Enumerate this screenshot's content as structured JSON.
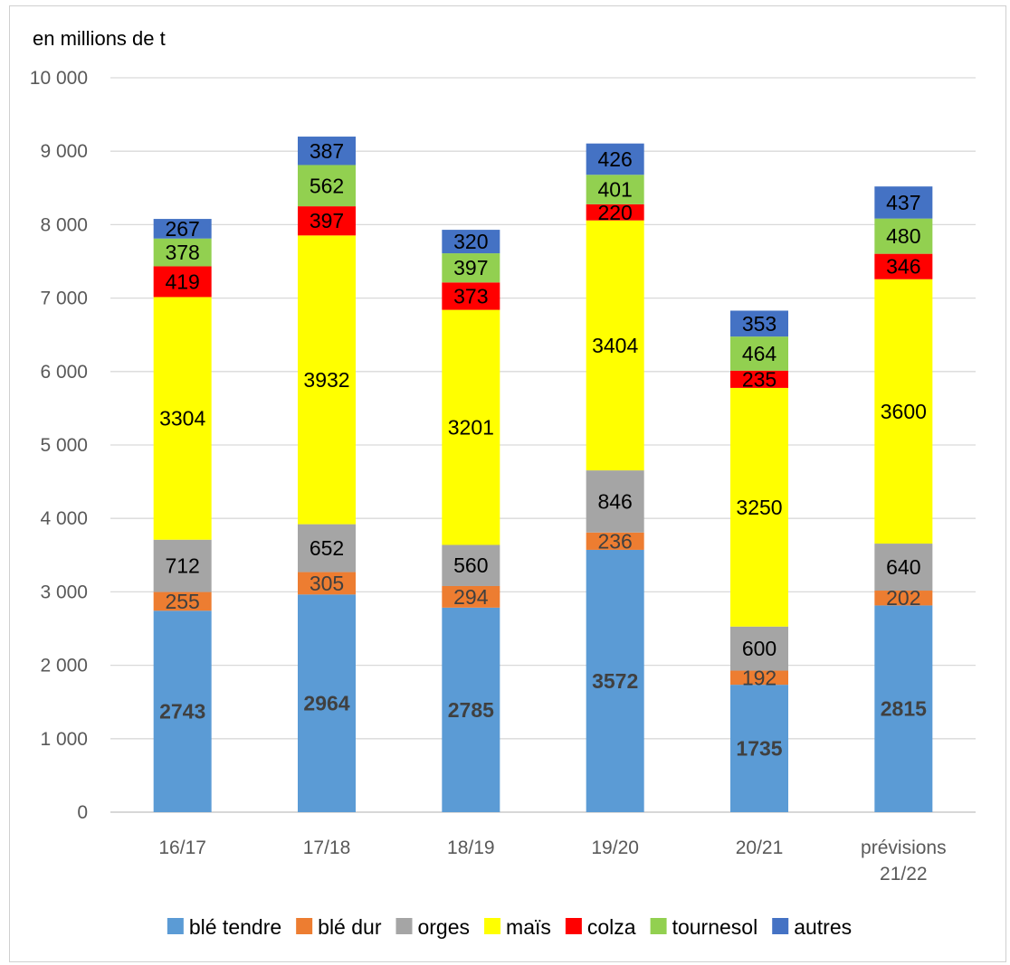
{
  "chart_data": {
    "type": "bar",
    "stacked": true,
    "unit_label": "en millions de t",
    "categories": [
      "16/17",
      "17/18",
      "18/19",
      "19/20",
      "20/21",
      "prévisions 21/22"
    ],
    "category_lines": [
      [
        "16/17"
      ],
      [
        "17/18"
      ],
      [
        "18/19"
      ],
      [
        "19/20"
      ],
      [
        "20/21"
      ],
      [
        "prévisions",
        "21/22"
      ]
    ],
    "ylim": [
      0,
      10000
    ],
    "yticks": [
      0,
      1000,
      2000,
      3000,
      4000,
      5000,
      6000,
      7000,
      8000,
      9000,
      10000
    ],
    "ytick_labels": [
      "0",
      "1 000",
      "2 000",
      "3 000",
      "4 000",
      "5 000",
      "6 000",
      "7 000",
      "8 000",
      "9 000",
      "10 000"
    ],
    "grid": true,
    "legend_position": "bottom",
    "series": [
      {
        "name": "blé tendre",
        "color": "#5B9BD5",
        "label_color": "#404040",
        "bold": true,
        "values": [
          2743,
          2964,
          2785,
          3572,
          1735,
          2815
        ]
      },
      {
        "name": "blé dur",
        "color": "#ED7D31",
        "label_color": "#404040",
        "bold": false,
        "values": [
          255,
          305,
          294,
          236,
          192,
          202
        ]
      },
      {
        "name": "orges",
        "color": "#A5A5A5",
        "label_color": "#000000",
        "bold": false,
        "values": [
          712,
          652,
          560,
          846,
          600,
          640
        ]
      },
      {
        "name": "maïs",
        "color": "#FFFF00",
        "label_color": "#000000",
        "bold": false,
        "values": [
          3304,
          3932,
          3201,
          3404,
          3250,
          3600
        ]
      },
      {
        "name": "colza",
        "color": "#FF0000",
        "label_color": "#000000",
        "bold": false,
        "values": [
          419,
          397,
          373,
          220,
          235,
          346
        ]
      },
      {
        "name": "tournesol",
        "color": "#92D050",
        "label_color": "#000000",
        "bold": false,
        "values": [
          378,
          562,
          397,
          401,
          464,
          480
        ]
      },
      {
        "name": "autres",
        "color": "#4472C4",
        "label_color": "#000000",
        "bold": false,
        "values": [
          267,
          387,
          320,
          426,
          353,
          437
        ]
      }
    ]
  }
}
